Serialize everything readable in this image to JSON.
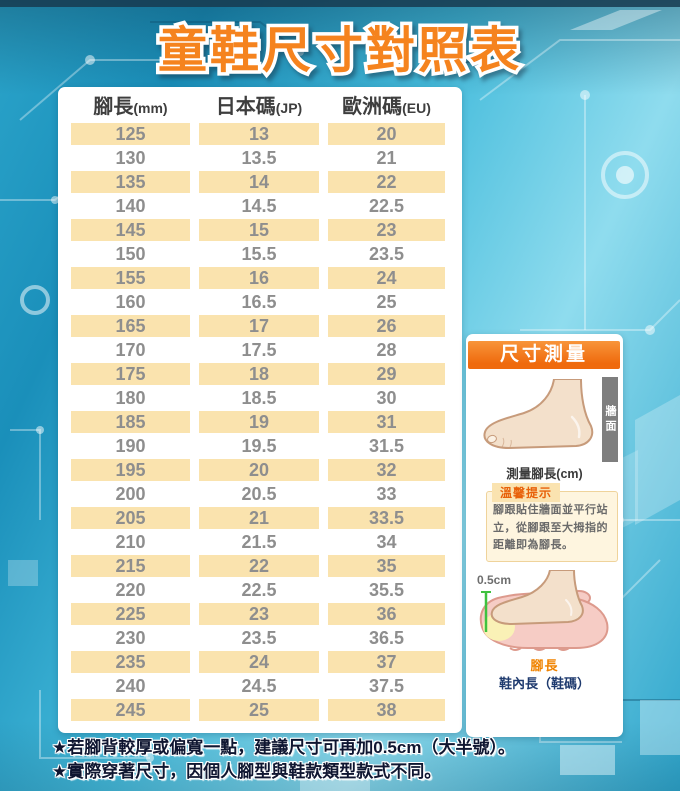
{
  "title": "童鞋尺寸對照表",
  "table": {
    "headers": [
      {
        "main": "腳長",
        "unit": "(mm)"
      },
      {
        "main": "日本碼",
        "unit": "(JP)"
      },
      {
        "main": "歐洲碼",
        "unit": "(EU)"
      }
    ],
    "rows": [
      [
        "125",
        "13",
        "20"
      ],
      [
        "130",
        "13.5",
        "21"
      ],
      [
        "135",
        "14",
        "22"
      ],
      [
        "140",
        "14.5",
        "22.5"
      ],
      [
        "145",
        "15",
        "23"
      ],
      [
        "150",
        "15.5",
        "23.5"
      ],
      [
        "155",
        "16",
        "24"
      ],
      [
        "160",
        "16.5",
        "25"
      ],
      [
        "165",
        "17",
        "26"
      ],
      [
        "170",
        "17.5",
        "28"
      ],
      [
        "175",
        "18",
        "29"
      ],
      [
        "180",
        "18.5",
        "30"
      ],
      [
        "185",
        "19",
        "31"
      ],
      [
        "190",
        "19.5",
        "31.5"
      ],
      [
        "195",
        "20",
        "32"
      ],
      [
        "200",
        "20.5",
        "33"
      ],
      [
        "205",
        "21",
        "33.5"
      ],
      [
        "210",
        "21.5",
        "34"
      ],
      [
        "215",
        "22",
        "35"
      ],
      [
        "220",
        "22.5",
        "35.5"
      ],
      [
        "225",
        "23",
        "36"
      ],
      [
        "230",
        "23.5",
        "36.5"
      ],
      [
        "235",
        "24",
        "37"
      ],
      [
        "240",
        "24.5",
        "37.5"
      ],
      [
        "245",
        "25",
        "38"
      ]
    ]
  },
  "sidebar": {
    "title": "尺寸測量",
    "wall_label": "牆面",
    "measure_caption": "測量腳長(cm)",
    "tip": {
      "title": "溫馨提示",
      "body": "腳跟貼住牆面並平行站立，從腳跟至大拇指的距離即為腳長。"
    },
    "offset_label": "0.5cm",
    "foot_length_label": "腳長",
    "inner_length_label": "鞋內長（鞋碼）"
  },
  "notes": [
    "★若腳背較厚或偏寬一點，建議尺寸可再加0.5cm（大半號）。",
    "★實際穿著尺寸，因個人腳型與鞋款類型款式不同。"
  ],
  "colors": {
    "title_orange": "#F5831E",
    "banner_orange": "#EF6A0D",
    "row_cream": "#FAE3AE",
    "cell_text_gray": "#8E8E8E",
    "header_text": "#3E3E3E",
    "tip_title_orange": "#E8610A",
    "tip_bg": "#FEF5DF",
    "wall_gray": "#7E7E7E",
    "measure_line_green": "#3FC23F",
    "foot_label_orange": "#F08300",
    "inner_label_navy": "#1E3A6E",
    "note_text": "#0F1631",
    "background_teal": "#2BA4CA"
  }
}
